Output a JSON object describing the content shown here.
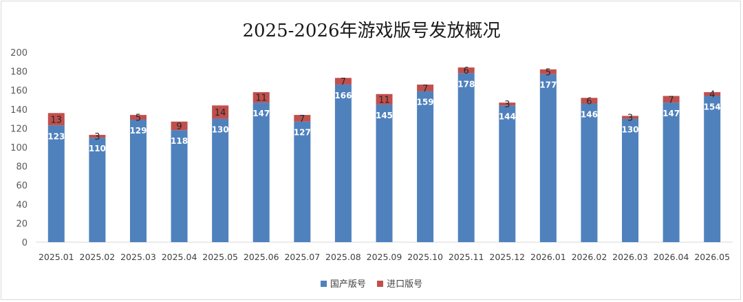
{
  "chart_data": {
    "type": "bar",
    "stacked": true,
    "title": "2025-2026年游戏版号发放概况",
    "categories": [
      "2025.01",
      "2025.02",
      "2025.03",
      "2025.04",
      "2025.05",
      "2025.06",
      "2025.07",
      "2025.08",
      "2025.09",
      "2025.10",
      "2025.11",
      "2025.12",
      "2026.01",
      "2026.02",
      "2026.03",
      "2026.04",
      "2026.05"
    ],
    "series": [
      {
        "name": "国产版号",
        "color": "#4f81bd",
        "values": [
          123,
          110,
          129,
          118,
          130,
          147,
          127,
          166,
          145,
          159,
          178,
          144,
          177,
          146,
          130,
          147,
          154
        ]
      },
      {
        "name": "进口版号",
        "color": "#c0504d",
        "values": [
          13,
          3,
          5,
          9,
          14,
          11,
          7,
          7,
          11,
          7,
          6,
          3,
          5,
          6,
          3,
          7,
          4
        ]
      }
    ],
    "ylim": [
      0,
      200
    ],
    "yticks": [
      0,
      20,
      40,
      60,
      80,
      100,
      120,
      140,
      160,
      180,
      200
    ],
    "grid": false,
    "legend": "bottom"
  }
}
